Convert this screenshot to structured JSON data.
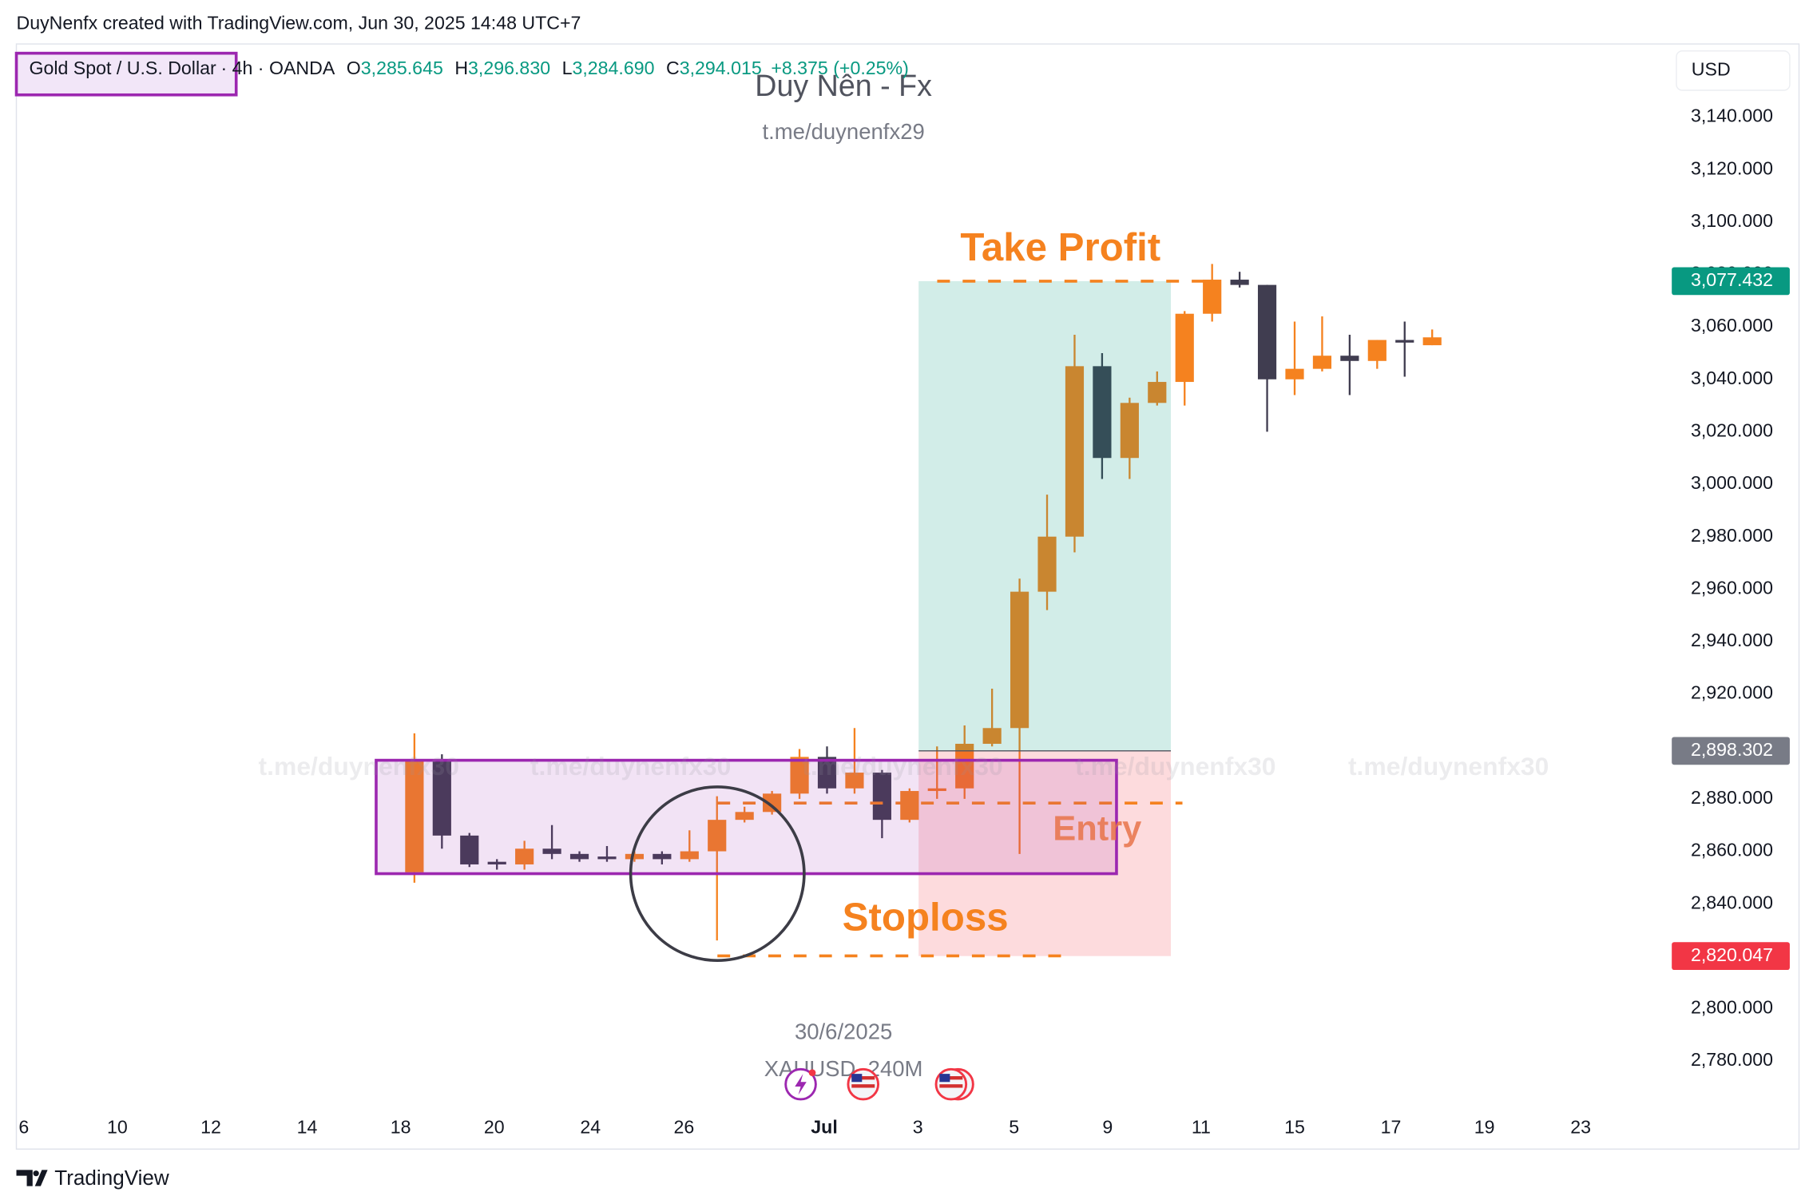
{
  "header": "DuyNenfx created with TradingView.com, Jun 30, 2025 14:48 UTC+7",
  "legend": {
    "symbol": "Gold Spot / U.S. Dollar",
    "details": "· 4h · OANDA",
    "fields": [
      {
        "key": "O",
        "value": "3,285.645"
      },
      {
        "key": "H",
        "value": "3,296.830"
      },
      {
        "key": "L",
        "value": "3,284.690"
      },
      {
        "key": "C",
        "value": "3,294.015"
      }
    ],
    "change": "+8.375 (+0.25%)"
  },
  "currency": "USD",
  "watermark": {
    "title": "Duy Nên - Fx",
    "subtitle": "t.me/duynenfx29",
    "date": "30/6/2025",
    "symbol": "XAUUSD, 240M",
    "repeated": [
      "t.me/duynenfx30",
      "t.me/duynenfx30",
      "t.me/duynenfx30",
      "t.me/duynenfx30",
      "t.me/duynenfx30"
    ]
  },
  "annotations": {
    "take_profit": "Take Profit",
    "entry": "Entry",
    "stop_loss": "Stoploss"
  },
  "footer": "TradingView",
  "chart_data": {
    "type": "candlestick",
    "up_color": "#f5821f",
    "down_color": "#403d50",
    "open": [
      2852,
      2895,
      2866,
      2856,
      2855,
      2861,
      2859,
      2858,
      2857,
      2859,
      2857,
      2860,
      2872,
      2875,
      2882,
      2896,
      2884,
      2890,
      2872,
      2883,
      2884,
      2901,
      2907,
      2959,
      2980,
      3045,
      3010,
      3031,
      3039,
      3065,
      3078,
      3076,
      3040,
      3044,
      3049,
      3047,
      3055,
      3053
    ],
    "high": [
      2905,
      2897,
      2867,
      2857,
      2864,
      2870,
      2860,
      2862,
      2860,
      2860,
      2868,
      2881,
      2877,
      2883,
      2899,
      2900,
      2907,
      2891,
      2884,
      2900,
      2908,
      2922,
      2964,
      2996,
      3057,
      3050,
      3033,
      3043,
      3066,
      3084,
      3081,
      3076,
      3062,
      3064,
      3057,
      3055,
      3062,
      3059
    ],
    "low": [
      2848,
      2861,
      2854,
      2853,
      2853,
      2857,
      2856,
      2856,
      2856,
      2855,
      2856,
      2826,
      2871,
      2874,
      2880,
      2882,
      2882,
      2865,
      2871,
      2880,
      2880,
      2900,
      2859,
      2952,
      2974,
      3002,
      3002,
      3030,
      3030,
      3062,
      3075,
      3020,
      3034,
      3043,
      3034,
      3044,
      3041,
      3053
    ],
    "close": [
      2895,
      2866,
      2855,
      2855,
      2861,
      2859,
      2857,
      2857,
      2859,
      2857,
      2860,
      2872,
      2875,
      2882,
      2896,
      2884,
      2890,
      2872,
      2883,
      2884,
      2901,
      2907,
      2959,
      2980,
      3045,
      3010,
      3031,
      3039,
      3065,
      3078,
      3076,
      3040,
      3044,
      3049,
      3047,
      3055,
      3054,
      3056
    ],
    "xlim": [
      -14.47,
      45.5
    ],
    "xticks": [
      {
        "value": -14.2,
        "label": "6"
      },
      {
        "value": -10.8,
        "label": "10"
      },
      {
        "value": -7.4,
        "label": "12"
      },
      {
        "value": -3.9,
        "label": "14"
      },
      {
        "value": -0.5,
        "label": "18"
      },
      {
        "value": 2.9,
        "label": "20"
      },
      {
        "value": 6.4,
        "label": "24"
      },
      {
        "value": 9.8,
        "label": "26"
      },
      {
        "value": 14.9,
        "label": "Jul"
      },
      {
        "value": 18.3,
        "label": "3"
      },
      {
        "value": 21.8,
        "label": "5"
      },
      {
        "value": 25.2,
        "label": "9"
      },
      {
        "value": 28.6,
        "label": "11"
      },
      {
        "value": 32.0,
        "label": "15"
      },
      {
        "value": 35.5,
        "label": "17"
      },
      {
        "value": 38.9,
        "label": "19"
      },
      {
        "value": 42.4,
        "label": "23"
      }
    ],
    "ylim": [
      2761,
      3167
    ],
    "yticks": [
      {
        "value": 2780,
        "label": "2,780.000"
      },
      {
        "value": 2800,
        "label": "2,800.000"
      },
      {
        "value": 2820,
        "label": "2,820.000"
      },
      {
        "value": 2840,
        "label": "2,840.000"
      },
      {
        "value": 2860,
        "label": "2,860.000"
      },
      {
        "value": 2880,
        "label": "2,880.000"
      },
      {
        "value": 2900,
        "label": "2,900.000"
      },
      {
        "value": 2920,
        "label": "2,920.000"
      },
      {
        "value": 2940,
        "label": "2,940.000"
      },
      {
        "value": 2960,
        "label": "2,960.000"
      },
      {
        "value": 2980,
        "label": "2,980.000"
      },
      {
        "value": 3000,
        "label": "3,000.000"
      },
      {
        "value": 3020,
        "label": "3,020.000"
      },
      {
        "value": 3040,
        "label": "3,040.000"
      },
      {
        "value": 3060,
        "label": "3,060.000"
      },
      {
        "value": 3080,
        "label": "3,080.000"
      },
      {
        "value": 3100,
        "label": "3,100.000"
      },
      {
        "value": 3120,
        "label": "3,120.000"
      },
      {
        "value": 3140,
        "label": "3,140.000"
      }
    ],
    "grid": false,
    "position": {
      "start": 18.33,
      "end": 27.5
    },
    "price_labels": [
      {
        "value": 3077.432,
        "label": "3,077.432",
        "color": "#089981"
      },
      {
        "value": 2898.302,
        "label": "2,898.302",
        "color": "#787b86"
      },
      {
        "value": 2820.047,
        "label": "2,820.047",
        "color": "#f23645"
      }
    ]
  }
}
